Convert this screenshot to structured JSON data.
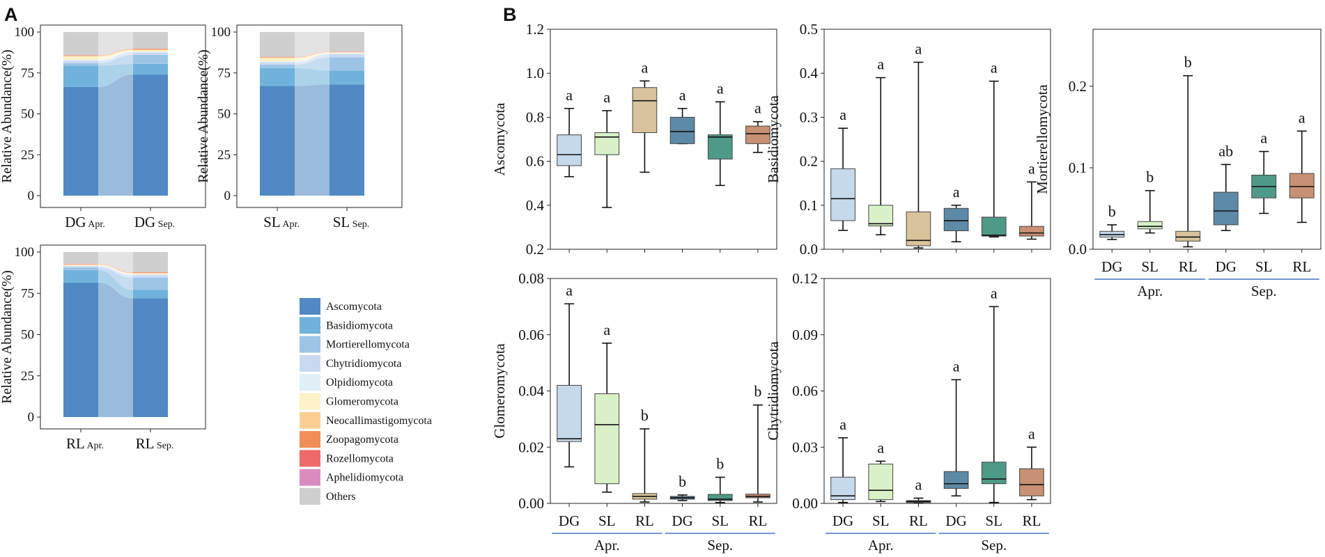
{
  "panels": {
    "a": "A",
    "b": "B"
  },
  "colors": {
    "Ascomycota": "#5089c3",
    "Basidiomycota": "#70b2db",
    "Mortierellomycota": "#9cc4e6",
    "Chytridiomycota": "#cad9f2",
    "Olpidiomycota": "#e0eff6",
    "Glomeromycota": "#fdf1c8",
    "Neocallimastigomycota": "#fbcf93",
    "Zoopagomycota": "#f18d56",
    "Rozellomycota": "#ee6a6a",
    "Aphelidiomycota": "#dc8bc1",
    "Others": "#cfcfcf",
    "box_DG_Apr": "#c6d9ea",
    "box_SL_Apr": "#d9f0c8",
    "box_RL_Apr": "#d8c39b",
    "box_DG_Sep": "#5d8aa6",
    "box_SL_Sep": "#4e9a87",
    "box_RL_Sep": "#c89074",
    "group_line": "#4a72c4"
  },
  "legend": [
    "Ascomycota",
    "Basidiomycota",
    "Mortierellomycota",
    "Chytridiomycota",
    "Olpidiomycota",
    "Glomeromycota",
    "Neocallimastigomycota",
    "Zoopagomycota",
    "Rozellomycota",
    "Aphelidiomycota",
    "Others"
  ],
  "chart_data": [
    {
      "id": "A-DG",
      "type": "area",
      "ylabel": "Relative Abundance(%)",
      "ylim": [
        0,
        100
      ],
      "yticks": [
        0,
        25,
        50,
        75,
        100
      ],
      "xlabels": [
        {
          "main": "DG",
          "sub": "Apr."
        },
        {
          "main": "DG",
          "sub": "Sep."
        }
      ],
      "series": [
        {
          "name": "Ascomycota",
          "values": [
            66.5,
            74
          ]
        },
        {
          "name": "Basidiomycota",
          "values": [
            13,
            6.5
          ]
        },
        {
          "name": "Mortierellomycota",
          "values": [
            1.5,
            5.5
          ]
        },
        {
          "name": "Chytridiomycota",
          "values": [
            1.5,
            1.5
          ]
        },
        {
          "name": "Olpidiomycota",
          "values": [
            0.5,
            0.5
          ]
        },
        {
          "name": "Glomeromycota",
          "values": [
            2,
            0.8
          ]
        },
        {
          "name": "Neocallimastigomycota",
          "values": [
            0.5,
            0.5
          ]
        },
        {
          "name": "Zoopagomycota",
          "values": [
            0.2,
            0.4
          ]
        },
        {
          "name": "Rozellomycota",
          "values": [
            0.1,
            0.1
          ]
        },
        {
          "name": "Aphelidiomycota",
          "values": [
            0.1,
            0.1
          ]
        },
        {
          "name": "Others",
          "values": [
            14.1,
            10.1
          ]
        }
      ]
    },
    {
      "id": "A-SL",
      "type": "area",
      "ylabel": "Relative Abundance(%)",
      "ylim": [
        0,
        100
      ],
      "yticks": [
        0,
        25,
        50,
        75,
        100
      ],
      "xlabels": [
        {
          "main": "SL",
          "sub": "Apr."
        },
        {
          "main": "SL",
          "sub": "Sep."
        }
      ],
      "series": [
        {
          "name": "Ascomycota",
          "values": [
            67,
            68
          ]
        },
        {
          "name": "Basidiomycota",
          "values": [
            11,
            8.5
          ]
        },
        {
          "name": "Mortierellomycota",
          "values": [
            2,
            8
          ]
        },
        {
          "name": "Chytridiomycota",
          "values": [
            1.5,
            2
          ]
        },
        {
          "name": "Olpidiomycota",
          "values": [
            0.5,
            0.5
          ]
        },
        {
          "name": "Glomeromycota",
          "values": [
            2,
            0.5
          ]
        },
        {
          "name": "Neocallimastigomycota",
          "values": [
            0.5,
            0.2
          ]
        },
        {
          "name": "Zoopagomycota",
          "values": [
            0.2,
            0.1
          ]
        },
        {
          "name": "Rozellomycota",
          "values": [
            0.1,
            0.1
          ]
        },
        {
          "name": "Aphelidiomycota",
          "values": [
            0.1,
            0.1
          ]
        },
        {
          "name": "Others",
          "values": [
            15.1,
            12
          ]
        }
      ]
    },
    {
      "id": "A-RL",
      "type": "area",
      "ylabel": "Relative Abundance(%)",
      "ylim": [
        0,
        100
      ],
      "yticks": [
        0,
        25,
        50,
        75,
        100
      ],
      "xlabels": [
        {
          "main": "RL",
          "sub": "Apr."
        },
        {
          "main": "RL",
          "sub": "Sep."
        }
      ],
      "series": [
        {
          "name": "Ascomycota",
          "values": [
            81.5,
            72
          ]
        },
        {
          "name": "Basidiomycota",
          "values": [
            7.5,
            5
          ]
        },
        {
          "name": "Mortierellomycota",
          "values": [
            1.5,
            7.5
          ]
        },
        {
          "name": "Chytridiomycota",
          "values": [
            1,
            1.5
          ]
        },
        {
          "name": "Olpidiomycota",
          "values": [
            0.3,
            0.5
          ]
        },
        {
          "name": "Glomeromycota",
          "values": [
            0.4,
            0.5
          ]
        },
        {
          "name": "Neocallimastigomycota",
          "values": [
            0.3,
            0.3
          ]
        },
        {
          "name": "Zoopagomycota",
          "values": [
            0.2,
            0.3
          ]
        },
        {
          "name": "Rozellomycota",
          "values": [
            0.1,
            0.1
          ]
        },
        {
          "name": "Aphelidiomycota",
          "values": [
            0.1,
            0.1
          ]
        },
        {
          "name": "Others",
          "values": [
            7.1,
            12.2
          ]
        }
      ]
    },
    {
      "id": "B-Ascomycota",
      "type": "box",
      "ylabel": "Ascomycota",
      "ylim": [
        0.2,
        1.2
      ],
      "yticks": [
        "0.2",
        "0.4",
        "0.6",
        "0.8",
        "1.0",
        "1.2"
      ],
      "show_xlabels": false,
      "categories": [
        "DG",
        "SL",
        "RL",
        "DG",
        "SL",
        "RL"
      ],
      "groups": [
        {
          "label": "Apr.",
          "from": 0,
          "to": 2
        },
        {
          "label": "Sep.",
          "from": 3,
          "to": 5
        }
      ],
      "boxes": [
        {
          "min": 0.53,
          "q1": 0.58,
          "median": 0.63,
          "q3": 0.72,
          "max": 0.84,
          "letter": "a"
        },
        {
          "min": 0.39,
          "q1": 0.63,
          "median": 0.71,
          "q3": 0.73,
          "max": 0.83,
          "letter": "a"
        },
        {
          "min": 0.55,
          "q1": 0.73,
          "median": 0.875,
          "q3": 0.935,
          "max": 0.965,
          "letter": "a"
        },
        {
          "min": 0.68,
          "q1": 0.68,
          "median": 0.735,
          "q3": 0.8,
          "max": 0.84,
          "letter": "a"
        },
        {
          "min": 0.49,
          "q1": 0.61,
          "median": 0.71,
          "q3": 0.72,
          "max": 0.87,
          "letter": "a"
        },
        {
          "min": 0.64,
          "q1": 0.68,
          "median": 0.725,
          "q3": 0.76,
          "max": 0.78,
          "letter": "a"
        }
      ]
    },
    {
      "id": "B-Basidiomycota",
      "type": "box",
      "ylabel": "Basidiomycota",
      "ylim": [
        0,
        0.5
      ],
      "yticks": [
        "0.0",
        "0.1",
        "0.2",
        "0.3",
        "0.4",
        "0.5"
      ],
      "show_xlabels": false,
      "categories": [
        "DG",
        "SL",
        "RL",
        "DG",
        "SL",
        "RL"
      ],
      "groups": [
        {
          "label": "Apr.",
          "from": 0,
          "to": 2
        },
        {
          "label": "Sep.",
          "from": 3,
          "to": 5
        }
      ],
      "boxes": [
        {
          "min": 0.043,
          "q1": 0.065,
          "median": 0.115,
          "q3": 0.183,
          "max": 0.275,
          "letter": "a"
        },
        {
          "min": 0.033,
          "q1": 0.053,
          "median": 0.058,
          "q3": 0.1,
          "max": 0.39,
          "letter": "a"
        },
        {
          "min": 0.003,
          "q1": 0.008,
          "median": 0.02,
          "q3": 0.085,
          "max": 0.425,
          "letter": "a"
        },
        {
          "min": 0.017,
          "q1": 0.042,
          "median": 0.065,
          "q3": 0.093,
          "max": 0.1,
          "letter": "a"
        },
        {
          "min": 0.028,
          "q1": 0.03,
          "median": 0.032,
          "q3": 0.073,
          "max": 0.382,
          "letter": "a"
        },
        {
          "min": 0.023,
          "q1": 0.03,
          "median": 0.037,
          "q3": 0.052,
          "max": 0.153,
          "letter": "a"
        }
      ]
    },
    {
      "id": "B-Mortierellomycota",
      "type": "box",
      "ylabel": "Mortierellomycota",
      "ylim": [
        0,
        0.27
      ],
      "yticks": [
        "0.0",
        "0.1",
        "0.2"
      ],
      "show_xlabels": true,
      "categories": [
        "DG",
        "SL",
        "RL",
        "DG",
        "SL",
        "RL"
      ],
      "groups": [
        {
          "label": "Apr.",
          "from": 0,
          "to": 2
        },
        {
          "label": "Sep.",
          "from": 3,
          "to": 5
        }
      ],
      "boxes": [
        {
          "min": 0.012,
          "q1": 0.015,
          "median": 0.018,
          "q3": 0.022,
          "max": 0.03,
          "letter": "b"
        },
        {
          "min": 0.02,
          "q1": 0.025,
          "median": 0.028,
          "q3": 0.034,
          "max": 0.072,
          "letter": "b"
        },
        {
          "min": 0.003,
          "q1": 0.01,
          "median": 0.015,
          "q3": 0.022,
          "max": 0.213,
          "letter": "b"
        },
        {
          "min": 0.023,
          "q1": 0.03,
          "median": 0.047,
          "q3": 0.07,
          "max": 0.104,
          "letter": "ab"
        },
        {
          "min": 0.044,
          "q1": 0.063,
          "median": 0.077,
          "q3": 0.091,
          "max": 0.12,
          "letter": "a"
        },
        {
          "min": 0.033,
          "q1": 0.063,
          "median": 0.077,
          "q3": 0.093,
          "max": 0.145,
          "letter": "a"
        }
      ]
    },
    {
      "id": "B-Glomeromycota",
      "type": "box",
      "ylabel": "Glomeromycota",
      "ylim": [
        0,
        0.08
      ],
      "yticks": [
        "0.00",
        "0.02",
        "0.04",
        "0.06",
        "0.08"
      ],
      "show_xlabels": true,
      "categories": [
        "DG",
        "SL",
        "RL",
        "DG",
        "SL",
        "RL"
      ],
      "groups": [
        {
          "label": "Apr.",
          "from": 0,
          "to": 2
        },
        {
          "label": "Sep.",
          "from": 3,
          "to": 5
        }
      ],
      "boxes": [
        {
          "min": 0.013,
          "q1": 0.022,
          "median": 0.023,
          "q3": 0.042,
          "max": 0.071,
          "letter": "a"
        },
        {
          "min": 0.004,
          "q1": 0.007,
          "median": 0.028,
          "q3": 0.039,
          "max": 0.057,
          "letter": "a"
        },
        {
          "min": 0.0005,
          "q1": 0.0015,
          "median": 0.0025,
          "q3": 0.0035,
          "max": 0.0265,
          "letter": "b"
        },
        {
          "min": 0.001,
          "q1": 0.0015,
          "median": 0.002,
          "q3": 0.0025,
          "max": 0.003,
          "letter": "b"
        },
        {
          "min": 0.0003,
          "q1": 0.001,
          "median": 0.0015,
          "q3": 0.0032,
          "max": 0.0093,
          "letter": "b"
        },
        {
          "min": 0.0005,
          "q1": 0.002,
          "median": 0.0025,
          "q3": 0.0033,
          "max": 0.035,
          "letter": "b"
        }
      ]
    },
    {
      "id": "B-Chytridiomycota",
      "type": "box",
      "ylabel": "Chytridiomycota",
      "ylim": [
        0,
        0.12
      ],
      "yticks": [
        "0.00",
        "0.03",
        "0.06",
        "0.09",
        "0.12"
      ],
      "show_xlabels": true,
      "categories": [
        "DG",
        "SL",
        "RL",
        "DG",
        "SL",
        "RL"
      ],
      "groups": [
        {
          "label": "Apr.",
          "from": 0,
          "to": 2
        },
        {
          "label": "Sep.",
          "from": 3,
          "to": 5
        }
      ],
      "boxes": [
        {
          "min": 0.0005,
          "q1": 0.002,
          "median": 0.004,
          "q3": 0.014,
          "max": 0.035,
          "letter": "a"
        },
        {
          "min": 0.001,
          "q1": 0.002,
          "median": 0.007,
          "q3": 0.021,
          "max": 0.0225,
          "letter": "a"
        },
        {
          "min": 0.0002,
          "q1": 0.0005,
          "median": 0.001,
          "q3": 0.0015,
          "max": 0.0028,
          "letter": "a"
        },
        {
          "min": 0.004,
          "q1": 0.008,
          "median": 0.0105,
          "q3": 0.017,
          "max": 0.066,
          "letter": "a"
        },
        {
          "min": 0.0005,
          "q1": 0.0105,
          "median": 0.013,
          "q3": 0.022,
          "max": 0.105,
          "letter": "a"
        },
        {
          "min": 0.002,
          "q1": 0.004,
          "median": 0.01,
          "q3": 0.0185,
          "max": 0.03,
          "letter": "a"
        }
      ]
    }
  ]
}
